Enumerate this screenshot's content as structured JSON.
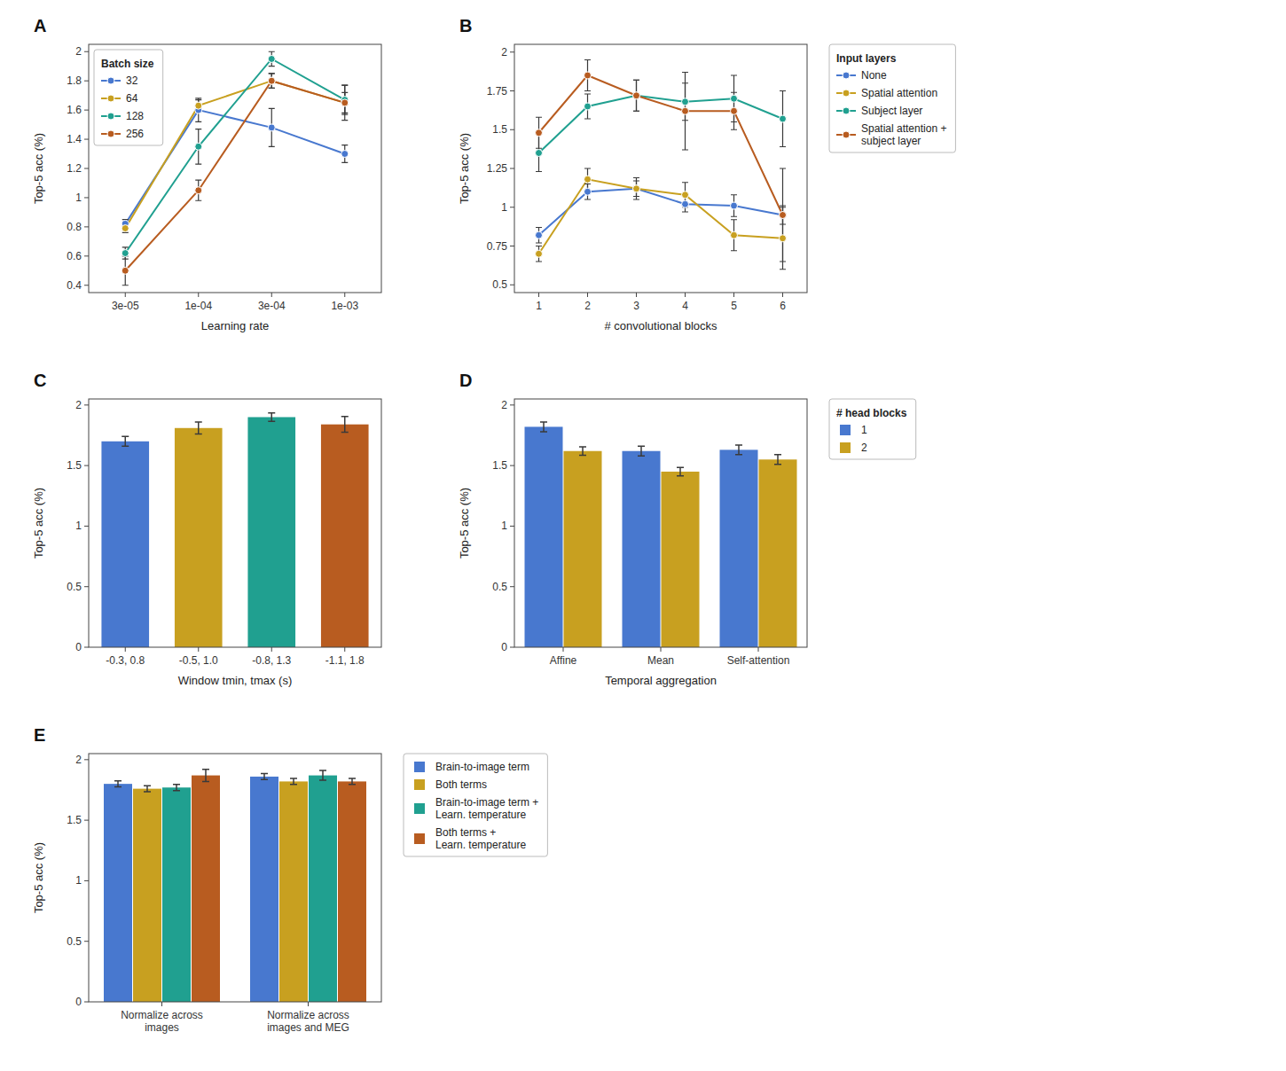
{
  "chart_data": [
    {
      "type": "line",
      "title": "A",
      "categories": [
        "3e-05",
        "1e-04",
        "3e-04",
        "1e-03"
      ],
      "series": [
        {
          "name": "32",
          "color": "#4878cf",
          "values": [
            0.82,
            1.6,
            1.48,
            1.3
          ],
          "errors": [
            0.03,
            0.08,
            0.13,
            0.06
          ]
        },
        {
          "name": "64",
          "color": "#c8a020",
          "values": [
            0.79,
            1.63,
            1.8,
            1.65
          ],
          "errors": [
            0.03,
            0.04,
            0.05,
            0.12
          ]
        },
        {
          "name": "128",
          "color": "#20a090",
          "values": [
            0.62,
            1.35,
            1.95,
            1.67
          ],
          "errors": [
            0.04,
            0.12,
            0.05,
            0.1
          ]
        },
        {
          "name": "256",
          "color": "#b85c20",
          "values": [
            0.5,
            1.05,
            1.8,
            1.65
          ],
          "errors": [
            0.1,
            0.07,
            0.05,
            0.07
          ]
        }
      ],
      "xlabel": "Learning rate",
      "ylabel": "Top-5 acc (%)",
      "ylim": [
        0.35,
        2.05
      ],
      "yticks": [
        0.4,
        0.6,
        0.8,
        1,
        1.2,
        1.4,
        1.6,
        1.8,
        2
      ],
      "legend_title": "Batch size",
      "legend": "upper left",
      "marker": "circle",
      "grid": false
    },
    {
      "type": "line",
      "title": "B",
      "x": [
        1,
        2,
        3,
        4,
        5,
        6
      ],
      "series": [
        {
          "name": "None",
          "color": "#4878cf",
          "values": [
            0.82,
            1.1,
            1.12,
            1.02,
            1.01,
            0.95
          ],
          "errors": [
            0.05,
            0.05,
            0.05,
            0.05,
            0.07,
            0.06
          ]
        },
        {
          "name": "Spatial attention",
          "color": "#c8a020",
          "values": [
            0.7,
            1.18,
            1.12,
            1.08,
            0.82,
            0.8
          ],
          "errors": [
            0.05,
            0.07,
            0.07,
            0.08,
            0.1,
            0.2
          ]
        },
        {
          "name": "Subject layer",
          "color": "#20a090",
          "values": [
            1.35,
            1.65,
            1.72,
            1.68,
            1.7,
            1.57
          ],
          "errors": [
            0.12,
            0.08,
            0.1,
            0.12,
            0.15,
            0.18
          ]
        },
        {
          "name": "Spatial attention +\nsubject layer",
          "color": "#b85c20",
          "values": [
            1.48,
            1.85,
            1.72,
            1.62,
            1.62,
            0.95
          ],
          "errors": [
            0.1,
            0.1,
            0.1,
            0.25,
            0.12,
            0.3
          ]
        }
      ],
      "xlabel": "# convolutional blocks",
      "ylabel": "Top-5 acc (%)",
      "xlim": [
        0.5,
        6.5
      ],
      "xticks": [
        1,
        2,
        3,
        4,
        5,
        6
      ],
      "ylim": [
        0.45,
        2.05
      ],
      "yticks": [
        0.5,
        0.75,
        1,
        1.25,
        1.5,
        1.75,
        2
      ],
      "legend_title": "Input layers",
      "legend": "right",
      "marker": "circle",
      "grid": false
    },
    {
      "type": "bar",
      "title": "C",
      "categories": [
        "-0.3, 0.8",
        "-0.5, 1.0",
        "-0.8, 1.3",
        "-1.1, 1.8"
      ],
      "values": [
        1.7,
        1.81,
        1.9,
        1.84
      ],
      "errors": [
        0.04,
        0.05,
        0.035,
        0.065
      ],
      "colors": [
        "#4878cf",
        "#c8a020",
        "#20a090",
        "#b85c20"
      ],
      "xlabel": "Window tmin, tmax (s)",
      "ylabel": "Top-5 acc (%)",
      "ylim": [
        0.0,
        2.05
      ],
      "yticks": [
        0,
        0.5,
        1,
        1.5,
        2
      ],
      "grid": false
    },
    {
      "type": "bar",
      "title": "D",
      "categories": [
        "Affine",
        "Mean",
        "Self-attention"
      ],
      "series": [
        {
          "name": "1",
          "color": "#4878cf",
          "values": [
            1.82,
            1.62,
            1.63
          ],
          "errors": [
            0.04,
            0.04,
            0.04
          ]
        },
        {
          "name": "2",
          "color": "#c8a020",
          "values": [
            1.62,
            1.45,
            1.55
          ],
          "errors": [
            0.035,
            0.035,
            0.04
          ]
        }
      ],
      "xlabel": "Temporal aggregation",
      "ylabel": "Top-5 acc (%)",
      "ylim": [
        0.0,
        2.05
      ],
      "yticks": [
        0,
        0.5,
        1,
        1.5,
        2
      ],
      "legend_title": "# head blocks",
      "legend": "right",
      "grid": false
    },
    {
      "type": "bar",
      "title": "E",
      "categories": [
        "Normalize across\nimages",
        "Normalize across\nimages and MEG"
      ],
      "series": [
        {
          "name": "Brain-to-image term",
          "color": "#4878cf",
          "values": [
            1.8,
            1.86
          ],
          "errors": [
            0.025,
            0.025
          ]
        },
        {
          "name": "Both terms",
          "color": "#c8a020",
          "values": [
            1.76,
            1.82
          ],
          "errors": [
            0.025,
            0.025
          ]
        },
        {
          "name": "Brain-to-image term +\nLearn. temperature",
          "color": "#20a090",
          "values": [
            1.77,
            1.87
          ],
          "errors": [
            0.025,
            0.04
          ]
        },
        {
          "name": "Both terms +\nLearn. temperature",
          "color": "#b85c20",
          "values": [
            1.87,
            1.82
          ],
          "errors": [
            0.05,
            0.025
          ]
        }
      ],
      "ylabel": "Top-5 acc (%)",
      "ylim": [
        0.0,
        2.05
      ],
      "yticks": [
        0,
        0.5,
        1,
        1.5,
        2
      ],
      "legend": "right",
      "grid": false
    }
  ]
}
